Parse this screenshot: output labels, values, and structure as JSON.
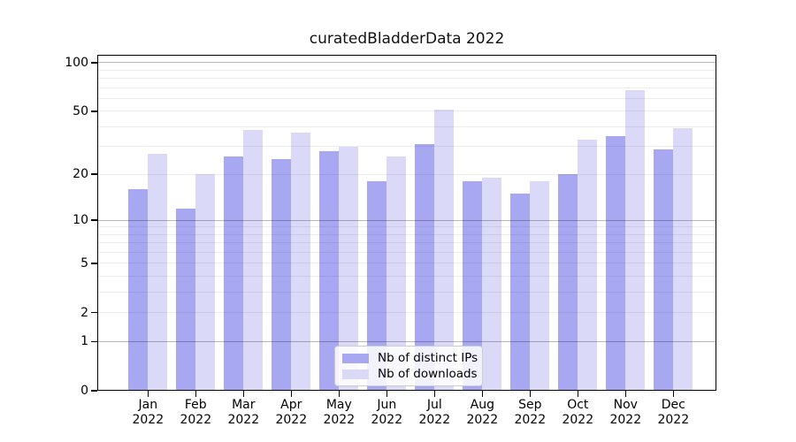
{
  "chart_data": {
    "type": "bar",
    "title": "curatedBladderData 2022",
    "xlabel": "",
    "ylabel": "",
    "scale": "log1p",
    "grid": true,
    "legend_position": "lower center",
    "categories": [
      "Jan",
      "Feb",
      "Mar",
      "Apr",
      "May",
      "Jun",
      "Jul",
      "Aug",
      "Sep",
      "Oct",
      "Nov",
      "Dec"
    ],
    "category_year": "2022",
    "series": [
      {
        "name": "Nb of distinct IPs",
        "color": "#a8a8f2",
        "values": [
          16,
          12,
          26,
          25,
          28,
          18,
          31,
          18,
          15,
          20,
          35,
          29
        ]
      },
      {
        "name": "Nb of downloads",
        "color": "#dadaf8",
        "values": [
          27,
          20,
          38,
          37,
          30,
          26,
          51,
          19,
          18,
          33,
          68,
          39
        ]
      }
    ],
    "y_ticks": [
      0,
      1,
      2,
      5,
      10,
      20,
      50,
      100
    ],
    "y_major_gridlines": [
      1,
      10,
      100
    ],
    "y_minor_gridlines": [
      2,
      3,
      4,
      5,
      6,
      7,
      8,
      9,
      20,
      30,
      40,
      50,
      60,
      70,
      80,
      90
    ],
    "ylim": [
      0,
      112
    ]
  },
  "colors": {
    "background": "#ffffff",
    "axis": "#000000",
    "major_grid": "rgba(0,0,0,0.28)",
    "minor_grid": "rgba(0,0,0,0.07)",
    "legend_border": "#cccccc"
  }
}
